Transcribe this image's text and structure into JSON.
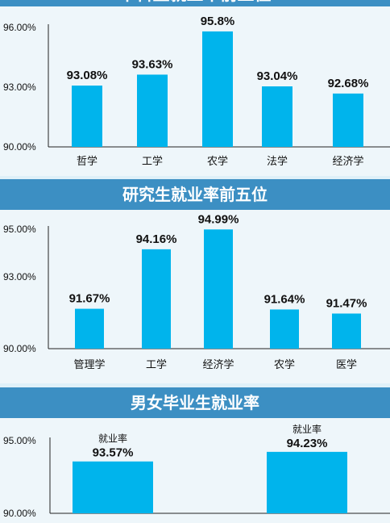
{
  "banner_colors": {
    "bg": "#3c8fc3",
    "bar": "#00b4ec",
    "panel": "#eef6fa"
  },
  "charts": [
    {
      "banner": "本科生就业率前五位",
      "ticks": [
        "96.00%",
        "93.00%",
        "90.00%"
      ]
    },
    {
      "banner": "研究生就业率前五位",
      "ticks": [
        "95.00%",
        "93.00%",
        "90.00%"
      ]
    },
    {
      "banner": "男女毕业生就业率",
      "ticks": [
        "95.00%",
        "90.00%"
      ]
    }
  ],
  "chart_data": [
    {
      "type": "bar",
      "title": "本科生就业率前五位",
      "categories": [
        "哲学",
        "工学",
        "农学",
        "法学",
        "经济学"
      ],
      "values": [
        93.08,
        93.63,
        95.8,
        93.04,
        92.68
      ],
      "labels": [
        "93.08%",
        "93.63%",
        "95.8%",
        "93.04%",
        "92.68%"
      ],
      "ylim": [
        90,
        96
      ],
      "yticks": [
        90,
        93,
        96
      ]
    },
    {
      "type": "bar",
      "title": "研究生就业率前五位",
      "categories": [
        "管理学",
        "工学",
        "经济学",
        "农学",
        "医学"
      ],
      "values": [
        91.67,
        94.16,
        94.99,
        91.64,
        91.47
      ],
      "labels": [
        "91.67%",
        "94.16%",
        "94.99%",
        "91.64%",
        "91.47%"
      ],
      "ylim": [
        90,
        95
      ],
      "yticks": [
        90,
        93,
        95
      ]
    },
    {
      "type": "bar",
      "title": "男女毕业生就业率",
      "categories": [
        "",
        ""
      ],
      "sublabels": [
        "就业率",
        "就业率"
      ],
      "values": [
        93.57,
        94.23
      ],
      "labels": [
        "93.57%",
        "94.23%"
      ],
      "ylim": [
        90,
        95
      ],
      "yticks": [
        90,
        95
      ]
    }
  ]
}
